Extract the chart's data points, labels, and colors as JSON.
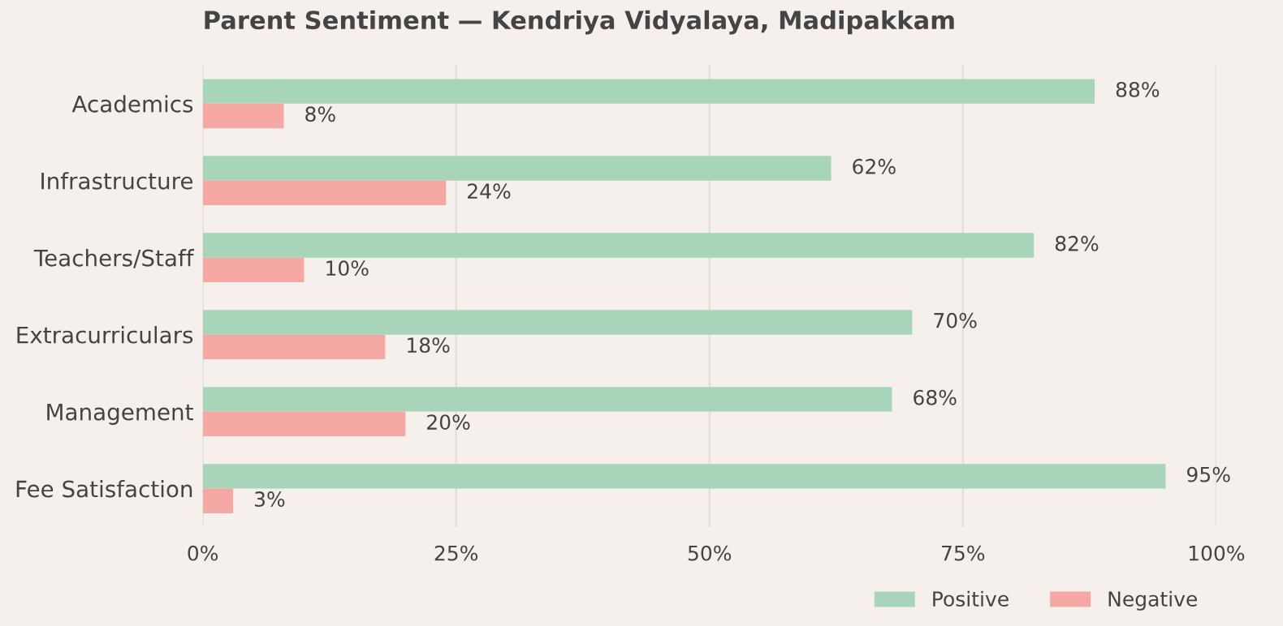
{
  "chart_data": {
    "type": "bar",
    "orientation": "horizontal",
    "title": "Parent Sentiment — Kendriya Vidyalaya, Madipakkam",
    "categories": [
      "Academics",
      "Infrastructure",
      "Teachers/Staff",
      "Extracurriculars",
      "Management",
      "Fee Satisfaction"
    ],
    "series": [
      {
        "name": "Positive",
        "color": "#a8d5ba",
        "values": [
          88,
          62,
          82,
          70,
          68,
          95
        ],
        "value_labels": [
          "88%",
          "62%",
          "82%",
          "70%",
          "68%",
          "95%"
        ]
      },
      {
        "name": "Negative",
        "color": "#f4a7a3",
        "values": [
          8,
          24,
          10,
          18,
          20,
          3
        ],
        "value_labels": [
          "8%",
          "24%",
          "10%",
          "18%",
          "20%",
          "3%"
        ]
      }
    ],
    "xlim": [
      0,
      100
    ],
    "xticks": [
      {
        "value": 0,
        "label": "0%"
      },
      {
        "value": 25,
        "label": "25%"
      },
      {
        "value": 50,
        "label": "50%"
      },
      {
        "value": 75,
        "label": "75%"
      },
      {
        "value": 100,
        "label": "100%"
      }
    ],
    "grid": "x",
    "legend": "bottom right"
  }
}
